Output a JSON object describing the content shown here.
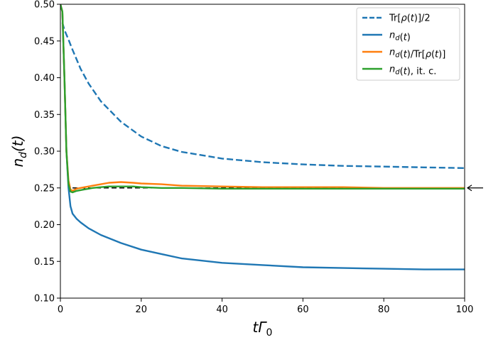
{
  "chart_data": {
    "type": "line",
    "title": "",
    "xlabel": "tΓ0",
    "ylabel": "n_d(t)",
    "xlim": [
      0,
      100
    ],
    "ylim": [
      0.1,
      0.5
    ],
    "grid": false,
    "legend_position": "top-right",
    "x_ticks": [
      "0",
      "20",
      "40",
      "60",
      "80",
      "100"
    ],
    "y_ticks": [
      "0.10",
      "0.15",
      "0.20",
      "0.25",
      "0.30",
      "0.35",
      "0.40",
      "0.45",
      "0.50"
    ],
    "reference": {
      "value": 0.25,
      "x_range": [
        3,
        100
      ],
      "style": "dashed",
      "color": "#000000",
      "marker": "left-arrow"
    },
    "series": [
      {
        "name": "Tr[ρ(t)]/2",
        "color": "#1f77b4",
        "style": "dashed",
        "x": [
          0.5,
          1,
          2,
          3,
          4,
          5,
          7,
          10,
          15,
          20,
          25,
          30,
          40,
          50,
          60,
          70,
          80,
          90,
          100
        ],
        "y": [
          0.475,
          0.465,
          0.452,
          0.438,
          0.425,
          0.412,
          0.392,
          0.368,
          0.34,
          0.32,
          0.307,
          0.299,
          0.29,
          0.285,
          0.282,
          0.28,
          0.279,
          0.278,
          0.277
        ]
      },
      {
        "name": "n_d(t)",
        "color": "#1f77b4",
        "style": "solid",
        "x": [
          0,
          0.5,
          1,
          1.5,
          2,
          2.5,
          3,
          4,
          5,
          7,
          10,
          15,
          20,
          25,
          30,
          40,
          50,
          60,
          70,
          80,
          90,
          100
        ],
        "y": [
          0.5,
          0.49,
          0.4,
          0.3,
          0.25,
          0.225,
          0.215,
          0.208,
          0.203,
          0.195,
          0.186,
          0.175,
          0.166,
          0.16,
          0.154,
          0.148,
          0.145,
          0.142,
          0.141,
          0.14,
          0.139,
          0.139
        ]
      },
      {
        "name": "n_d(t)/Tr[ρ(t)]",
        "color": "#ff7f0e",
        "style": "solid",
        "x": [
          0,
          0.5,
          1,
          1.5,
          2,
          2.5,
          3,
          4,
          6,
          8,
          10,
          12,
          15,
          18,
          20,
          25,
          30,
          40,
          50,
          60,
          70,
          80,
          90,
          100
        ],
        "y": [
          0.5,
          0.49,
          0.4,
          0.3,
          0.26,
          0.248,
          0.246,
          0.249,
          0.251,
          0.253,
          0.255,
          0.257,
          0.258,
          0.257,
          0.256,
          0.255,
          0.253,
          0.252,
          0.251,
          0.251,
          0.251,
          0.25,
          0.25,
          0.25
        ]
      },
      {
        "name": "n_d(t), it. c.",
        "color": "#2ca02c",
        "style": "solid",
        "x": [
          0,
          0.5,
          1,
          1.5,
          2,
          2.5,
          3,
          4,
          6,
          8,
          10,
          12,
          15,
          18,
          20,
          25,
          30,
          40,
          50,
          60,
          70,
          80,
          90,
          100
        ],
        "y": [
          0.5,
          0.49,
          0.4,
          0.3,
          0.255,
          0.245,
          0.244,
          0.246,
          0.248,
          0.25,
          0.251,
          0.252,
          0.252,
          0.252,
          0.251,
          0.25,
          0.25,
          0.249,
          0.249,
          0.249,
          0.249,
          0.249,
          0.249,
          0.249
        ]
      }
    ]
  }
}
